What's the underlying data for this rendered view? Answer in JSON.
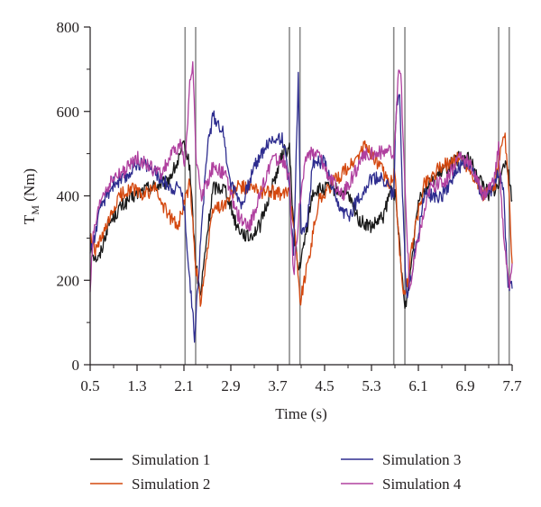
{
  "chart_data": {
    "type": "line",
    "xlabel": "Time (s)",
    "ylabel": "T",
    "ylabel_sub": "M",
    "ylabel_unit": " (Nm)",
    "xlim": [
      0.5,
      7.7
    ],
    "ylim": [
      0,
      800
    ],
    "x_ticks": [
      "0.5",
      "1.3",
      "2.1",
      "2.9",
      "3.7",
      "4.5",
      "5.3",
      "6.1",
      "6.9",
      "7.7"
    ],
    "y_ticks": [
      "0",
      "200",
      "400",
      "600",
      "800"
    ],
    "vertical_markers": [
      2.12,
      2.3,
      3.9,
      4.08,
      5.68,
      5.87,
      7.47,
      7.65
    ],
    "grid": false,
    "legend_position": "bottom",
    "series": [
      {
        "name": "Simulation 1",
        "color": "#1a1a1a",
        "points": [
          [
            0.5,
            310
          ],
          [
            0.55,
            260
          ],
          [
            0.65,
            250
          ],
          [
            0.8,
            330
          ],
          [
            1.0,
            370
          ],
          [
            1.2,
            395
          ],
          [
            1.5,
            420
          ],
          [
            1.8,
            430
          ],
          [
            2.0,
            480
          ],
          [
            2.1,
            520
          ],
          [
            2.2,
            470
          ],
          [
            2.3,
            240
          ],
          [
            2.38,
            160
          ],
          [
            2.48,
            290
          ],
          [
            2.6,
            420
          ],
          [
            2.8,
            420
          ],
          [
            3.0,
            330
          ],
          [
            3.2,
            300
          ],
          [
            3.4,
            330
          ],
          [
            3.6,
            420
          ],
          [
            3.8,
            505
          ],
          [
            3.9,
            510
          ],
          [
            3.97,
            330
          ],
          [
            4.05,
            220
          ],
          [
            4.12,
            260
          ],
          [
            4.3,
            410
          ],
          [
            4.6,
            420
          ],
          [
            4.9,
            400
          ],
          [
            5.1,
            340
          ],
          [
            5.3,
            325
          ],
          [
            5.5,
            350
          ],
          [
            5.65,
            420
          ],
          [
            5.7,
            400
          ],
          [
            5.77,
            300
          ],
          [
            5.87,
            130
          ],
          [
            5.95,
            200
          ],
          [
            6.1,
            400
          ],
          [
            6.3,
            430
          ],
          [
            6.6,
            470
          ],
          [
            6.8,
            490
          ],
          [
            6.95,
            490
          ],
          [
            7.1,
            450
          ],
          [
            7.3,
            405
          ],
          [
            7.47,
            420
          ],
          [
            7.55,
            490
          ],
          [
            7.62,
            470
          ],
          [
            7.7,
            390
          ]
        ]
      },
      {
        "name": "Simulation 2",
        "color": "#d4480f",
        "points": [
          [
            0.5,
            300
          ],
          [
            0.6,
            270
          ],
          [
            0.8,
            330
          ],
          [
            1.0,
            400
          ],
          [
            1.2,
            420
          ],
          [
            1.4,
            400
          ],
          [
            1.6,
            420
          ],
          [
            1.8,
            360
          ],
          [
            2.0,
            330
          ],
          [
            2.1,
            380
          ],
          [
            2.2,
            430
          ],
          [
            2.3,
            240
          ],
          [
            2.38,
            150
          ],
          [
            2.5,
            270
          ],
          [
            2.6,
            370
          ],
          [
            2.8,
            380
          ],
          [
            3.0,
            420
          ],
          [
            3.2,
            420
          ],
          [
            3.4,
            410
          ],
          [
            3.6,
            410
          ],
          [
            3.8,
            400
          ],
          [
            3.9,
            420
          ],
          [
            4.0,
            300
          ],
          [
            4.08,
            150
          ],
          [
            4.2,
            230
          ],
          [
            4.4,
            390
          ],
          [
            4.7,
            440
          ],
          [
            5.0,
            480
          ],
          [
            5.2,
            520
          ],
          [
            5.4,
            480
          ],
          [
            5.6,
            430
          ],
          [
            5.7,
            450
          ],
          [
            5.78,
            260
          ],
          [
            5.87,
            150
          ],
          [
            6.0,
            290
          ],
          [
            6.2,
            430
          ],
          [
            6.5,
            470
          ],
          [
            6.8,
            490
          ],
          [
            7.0,
            460
          ],
          [
            7.2,
            400
          ],
          [
            7.4,
            420
          ],
          [
            7.5,
            500
          ],
          [
            7.58,
            540
          ],
          [
            7.64,
            420
          ],
          [
            7.7,
            240
          ]
        ]
      },
      {
        "name": "Simulation 3",
        "color": "#2e2d8f",
        "points": [
          [
            0.5,
            270
          ],
          [
            0.55,
            290
          ],
          [
            0.7,
            380
          ],
          [
            0.9,
            430
          ],
          [
            1.1,
            440
          ],
          [
            1.3,
            480
          ],
          [
            1.5,
            470
          ],
          [
            1.7,
            440
          ],
          [
            1.9,
            420
          ],
          [
            2.05,
            420
          ],
          [
            2.12,
            350
          ],
          [
            2.2,
            200
          ],
          [
            2.28,
            70
          ],
          [
            2.35,
            220
          ],
          [
            2.5,
            520
          ],
          [
            2.6,
            590
          ],
          [
            2.75,
            560
          ],
          [
            2.9,
            430
          ],
          [
            3.1,
            380
          ],
          [
            3.3,
            470
          ],
          [
            3.5,
            520
          ],
          [
            3.7,
            540
          ],
          [
            3.8,
            530
          ],
          [
            3.9,
            420
          ],
          [
            3.97,
            260
          ],
          [
            4.05,
            680
          ],
          [
            4.1,
            300
          ],
          [
            4.2,
            340
          ],
          [
            4.3,
            480
          ],
          [
            4.5,
            480
          ],
          [
            4.7,
            380
          ],
          [
            4.9,
            350
          ],
          [
            5.1,
            400
          ],
          [
            5.3,
            440
          ],
          [
            5.5,
            440
          ],
          [
            5.68,
            400
          ],
          [
            5.72,
            600
          ],
          [
            5.78,
            640
          ],
          [
            5.84,
            360
          ],
          [
            5.9,
            160
          ],
          [
            6.0,
            230
          ],
          [
            6.2,
            400
          ],
          [
            6.5,
            400
          ],
          [
            6.8,
            470
          ],
          [
            7.0,
            470
          ],
          [
            7.2,
            400
          ],
          [
            7.4,
            420
          ],
          [
            7.47,
            460
          ],
          [
            7.55,
            420
          ],
          [
            7.62,
            200
          ],
          [
            7.7,
            180
          ]
        ]
      },
      {
        "name": "Simulation 4",
        "color": "#b0409f",
        "points": [
          [
            0.5,
            180
          ],
          [
            0.55,
            300
          ],
          [
            0.7,
            400
          ],
          [
            0.9,
            440
          ],
          [
            1.1,
            460
          ],
          [
            1.3,
            490
          ],
          [
            1.5,
            470
          ],
          [
            1.7,
            450
          ],
          [
            1.9,
            500
          ],
          [
            2.05,
            520
          ],
          [
            2.12,
            480
          ],
          [
            2.2,
            660
          ],
          [
            2.25,
            720
          ],
          [
            2.3,
            500
          ],
          [
            2.4,
            400
          ],
          [
            2.6,
            470
          ],
          [
            2.8,
            450
          ],
          [
            3.0,
            360
          ],
          [
            3.2,
            320
          ],
          [
            3.4,
            400
          ],
          [
            3.6,
            490
          ],
          [
            3.8,
            480
          ],
          [
            3.9,
            440
          ],
          [
            3.97,
            210
          ],
          [
            4.08,
            390
          ],
          [
            4.2,
            500
          ],
          [
            4.4,
            500
          ],
          [
            4.6,
            440
          ],
          [
            4.8,
            400
          ],
          [
            5.0,
            450
          ],
          [
            5.2,
            500
          ],
          [
            5.4,
            500
          ],
          [
            5.6,
            510
          ],
          [
            5.68,
            480
          ],
          [
            5.75,
            680
          ],
          [
            5.8,
            690
          ],
          [
            5.87,
            420
          ],
          [
            5.95,
            180
          ],
          [
            6.1,
            300
          ],
          [
            6.3,
            420
          ],
          [
            6.6,
            440
          ],
          [
            6.8,
            500
          ],
          [
            7.0,
            470
          ],
          [
            7.2,
            400
          ],
          [
            7.4,
            440
          ],
          [
            7.47,
            520
          ],
          [
            7.53,
            350
          ],
          [
            7.6,
            250
          ],
          [
            7.65,
            180
          ],
          [
            7.7,
            240
          ]
        ]
      }
    ]
  }
}
